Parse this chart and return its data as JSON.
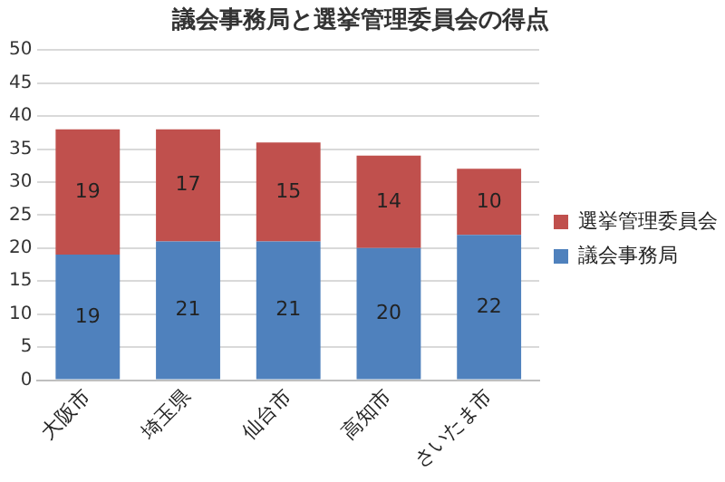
{
  "chart_data": {
    "type": "bar",
    "title": "議会事務局と選挙管理委員会の得点",
    "categories": [
      "大阪市",
      "埼玉県",
      "仙台市",
      "高知市",
      "さいたま市"
    ],
    "series": [
      {
        "name": "議会事務局",
        "color": "#4f81bd",
        "values": [
          19,
          21,
          21,
          20,
          22
        ]
      },
      {
        "name": "選挙管理委員会",
        "color": "#c0504d",
        "values": [
          19,
          17,
          15,
          14,
          10
        ]
      }
    ],
    "stacked": true,
    "ylim": [
      0,
      50
    ],
    "yticks": [
      0,
      5,
      10,
      15,
      20,
      25,
      30,
      35,
      40,
      45,
      50
    ],
    "grid": "y",
    "legend": "right",
    "data_labels": true
  }
}
